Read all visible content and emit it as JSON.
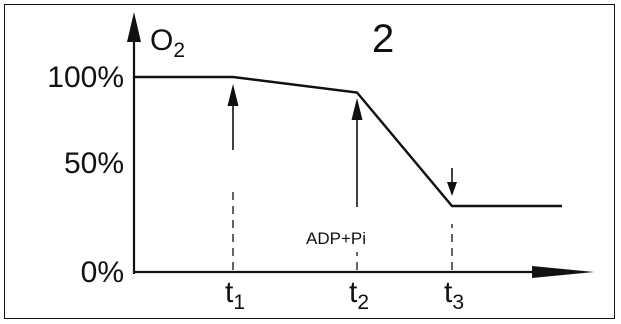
{
  "panel_label": "2",
  "y_axis_label": "O",
  "y_axis_label_subscript": "2",
  "annotation": "ADP+Pi",
  "colors": {
    "ink": "#111111",
    "background": "#ffffff"
  },
  "chart_data": {
    "type": "line",
    "title": "",
    "xlabel": "",
    "ylabel": "O2",
    "y_ticks": [
      {
        "value": 100,
        "label": "100%"
      },
      {
        "value": 50,
        "label": "50%"
      },
      {
        "value": 0,
        "label": "0%"
      }
    ],
    "x_ticks": [
      {
        "value": 1,
        "label": "t",
        "sub": "1"
      },
      {
        "value": 2,
        "label": "t",
        "sub": "2"
      },
      {
        "value": 3,
        "label": "t",
        "sub": "3"
      }
    ],
    "x_range": [
      0,
      4.5
    ],
    "y_range": [
      0,
      100
    ],
    "series": [
      {
        "values": [
          [
            0,
            100
          ],
          [
            1,
            100
          ],
          [
            2,
            91
          ],
          [
            3,
            25
          ],
          [
            4.3,
            25
          ]
        ]
      }
    ],
    "events": [
      {
        "x": 1,
        "direction": "up"
      },
      {
        "x": 2,
        "direction": "up"
      },
      {
        "x": 3,
        "direction": "down"
      }
    ],
    "grid": false
  }
}
